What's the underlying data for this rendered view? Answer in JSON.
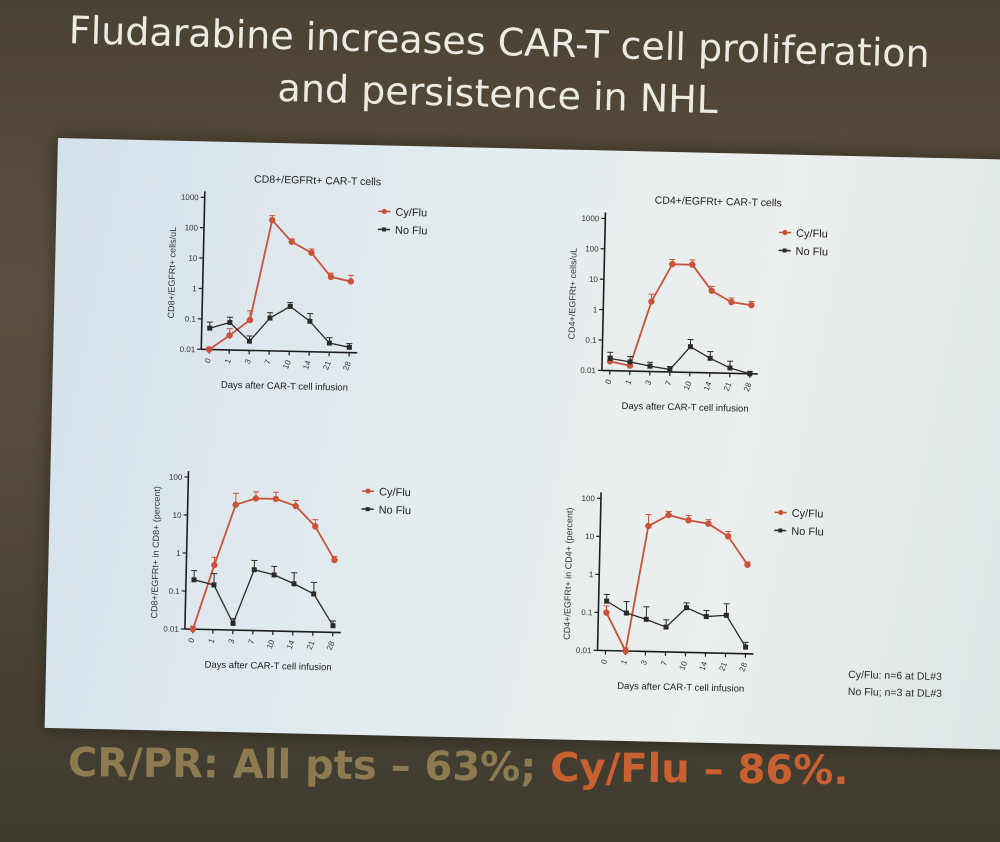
{
  "slide": {
    "title_line1": "Fludarabine increases CAR-T cell proliferation",
    "title_line2": "and persistence in NHL",
    "footnote_line1": "Cy/Flu: n=6 at DL#3",
    "footnote_line2": "No Flu; n=3 at DL#3",
    "result_part1": "CR/PR: All pts – 63%;",
    "result_part2": "Cy/Flu – 86%."
  },
  "colors": {
    "cy_flu": "#c9533a",
    "no_flu": "#2b2b2b"
  },
  "chart_data": [
    {
      "type": "line",
      "title": "CD8+/EGFRt+ CAR-T cells",
      "xlabel": "Days after CAR-T cell infusion",
      "ylabel": "CD8+/EGFRt+ cells/uL",
      "yscale": "log",
      "yticks": [
        "0.01",
        "0.1",
        "1",
        "10",
        "100",
        "1000"
      ],
      "ylim": [
        0.01,
        1000
      ],
      "categories": [
        "0",
        "1",
        "3",
        "7",
        "10",
        "14",
        "21",
        "28"
      ],
      "legend": "right",
      "series": [
        {
          "name": "Cy/Flu",
          "values": [
            0.01,
            0.03,
            0.1,
            200,
            40,
            18,
            3,
            2.2
          ],
          "err_high": [
            0.012,
            0.05,
            0.2,
            280,
            50,
            24,
            4,
            3.5
          ]
        },
        {
          "name": "No Flu",
          "values": [
            0.05,
            0.08,
            0.02,
            0.12,
            0.3,
            0.1,
            0.02,
            0.015
          ],
          "err_high": [
            0.08,
            0.12,
            0.03,
            0.18,
            0.4,
            0.18,
            0.03,
            0.02
          ]
        }
      ]
    },
    {
      "type": "line",
      "title": "CD4+/EGFRt+ CAR-T cells",
      "xlabel": "Days after CAR-T cell infusion",
      "ylabel": "CD4+/EGFRt+ cells/uL",
      "yscale": "log",
      "yticks": [
        "0.01",
        "0.1",
        "1",
        "10",
        "100",
        "1000"
      ],
      "ylim": [
        0.01,
        1000
      ],
      "categories": [
        "0",
        "1",
        "3",
        "7",
        "10",
        "14",
        "21",
        "28"
      ],
      "legend": "right",
      "series": [
        {
          "name": "Cy/Flu",
          "values": [
            0.02,
            0.015,
            2,
            35,
            35,
            5,
            2.2,
            1.8
          ],
          "err_high": [
            0.03,
            0.02,
            3.5,
            50,
            50,
            7,
            3,
            2.4
          ]
        },
        {
          "name": "No Flu",
          "values": [
            0.025,
            0.02,
            0.015,
            0.012,
            0.07,
            0.03,
            0.015,
            0.01
          ],
          "err_high": [
            0.04,
            0.03,
            0.02,
            0.015,
            0.12,
            0.05,
            0.025,
            0.012
          ]
        }
      ]
    },
    {
      "type": "line",
      "title": "",
      "xlabel": "Days after CAR-T cell infusion",
      "ylabel": "CD8+/EGFRt+ in CD8+ (percent)",
      "yscale": "log",
      "yticks": [
        "0.01",
        "0.1",
        "1",
        "10",
        "100"
      ],
      "ylim": [
        0.01,
        100
      ],
      "categories": [
        "0",
        "1",
        "3",
        "7",
        "10",
        "14",
        "21",
        "28"
      ],
      "legend": "right",
      "series": [
        {
          "name": "Cy/Flu",
          "values": [
            0.01,
            0.5,
            20,
            30,
            30,
            20,
            6,
            0.8
          ],
          "err_high": [
            0.012,
            0.8,
            40,
            45,
            45,
            28,
            9,
            1
          ]
        },
        {
          "name": "No Flu",
          "values": [
            0.2,
            0.15,
            0.015,
            0.4,
            0.3,
            0.18,
            0.1,
            0.015
          ],
          "err_high": [
            0.35,
            0.3,
            0.02,
            0.7,
            0.5,
            0.35,
            0.2,
            0.02
          ]
        }
      ]
    },
    {
      "type": "line",
      "title": "",
      "xlabel": "Days after CAR-T cell infusion",
      "ylabel": "CD4+/EGFRt+ in CD4+ (percent)",
      "yscale": "log",
      "yticks": [
        "0.01",
        "0.1",
        "1",
        "10",
        "100"
      ],
      "ylim": [
        0.01,
        100
      ],
      "categories": [
        "0",
        "1",
        "3",
        "7",
        "10",
        "14",
        "21",
        "28"
      ],
      "legend": "right",
      "series": [
        {
          "name": "Cy/Flu",
          "values": [
            0.1,
            0.01,
            20,
            40,
            30,
            25,
            12,
            2.2
          ],
          "err_high": [
            0.15,
            0.012,
            40,
            50,
            40,
            32,
            16,
            2.6
          ]
        },
        {
          "name": "No Flu",
          "values": [
            0.2,
            0.1,
            0.07,
            0.045,
            0.15,
            0.09,
            0.1,
            0.015
          ],
          "err_high": [
            0.3,
            0.2,
            0.15,
            0.07,
            0.2,
            0.13,
            0.2,
            0.02
          ]
        }
      ]
    }
  ]
}
